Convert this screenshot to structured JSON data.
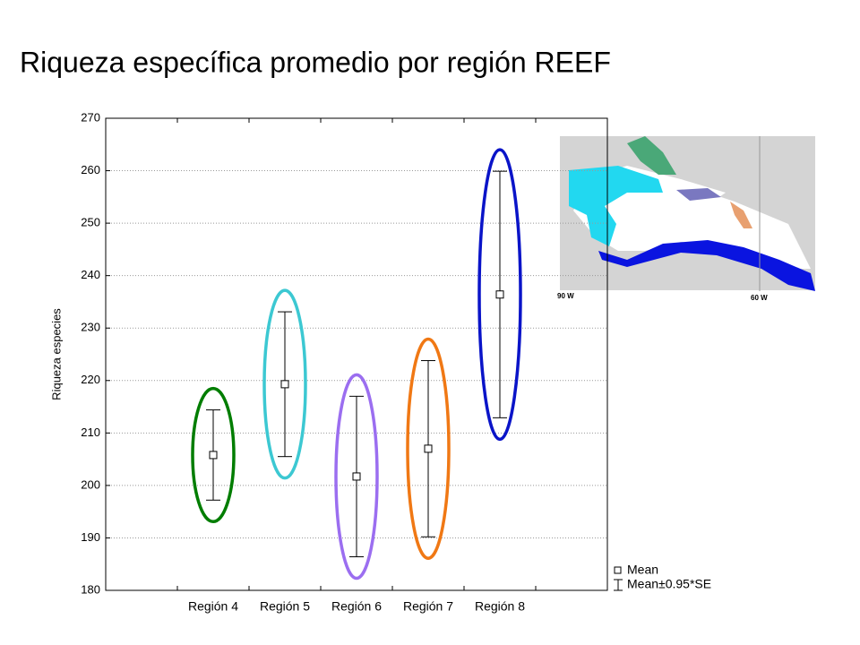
{
  "chart_data": {
    "type": "errorbar",
    "title": "Riqueza específica promedio por región REEF",
    "y_label": "Riqueza especies",
    "categories": [
      "Región 4",
      "Región 5",
      "Región 6",
      "Región 7",
      "Región 8"
    ],
    "values": [
      205.8,
      219.3,
      201.7,
      207.0,
      236.4
    ],
    "errors": [
      8.6,
      13.8,
      15.3,
      16.8,
      23.5
    ],
    "highlight_colors": [
      "#007d00",
      "#3cc8d2",
      "#9b6ef0",
      "#f07814",
      "#0a14c8"
    ],
    "ylim": [
      180,
      270
    ],
    "yticks": [
      180,
      190,
      200,
      210,
      220,
      230,
      240,
      250,
      260,
      270
    ],
    "grid": true,
    "legend": {
      "mean": "Mean",
      "error": "Mean±0.95*SE"
    },
    "legend_position": "lower right outside"
  },
  "map": {
    "labels": [
      "90 W",
      "60 W"
    ]
  }
}
